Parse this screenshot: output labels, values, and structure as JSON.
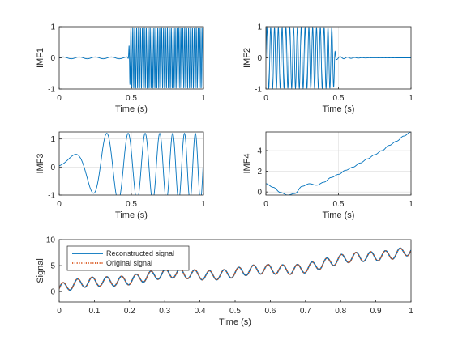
{
  "colors": {
    "series_blue": "#0072BD",
    "series_orange": "#D95319",
    "axes": "#262626",
    "grid": "#dcdcdc"
  },
  "chart_data": [
    {
      "id": "imf1",
      "type": "line",
      "xlabel": "Time (s)",
      "ylabel": "IMF1",
      "xlim": [
        0,
        1
      ],
      "ylim": [
        -1,
        1
      ],
      "xticks": [
        0,
        0.5,
        1
      ],
      "xtick_labels": [
        "0",
        "0.5",
        "1"
      ],
      "yticks": [
        -1,
        0,
        1
      ],
      "ytick_labels": [
        "-1",
        "0",
        "1"
      ],
      "grid": true,
      "signal": "quiet near 0 until ~0.48 s, then full-amplitude high-frequency oscillation between -1 and 1"
    },
    {
      "id": "imf2",
      "type": "line",
      "xlabel": "Time (s)",
      "ylabel": "IMF2",
      "xlim": [
        0,
        1
      ],
      "ylim": [
        -1,
        1
      ],
      "xticks": [
        0,
        0.5,
        1
      ],
      "xtick_labels": [
        "0",
        "0.5",
        "1"
      ],
      "yticks": [
        -1,
        0,
        1
      ],
      "ytick_labels": [
        "-1",
        "0",
        "1"
      ],
      "grid": true,
      "signal": "oscillation between -1 and 1 from 0 to ~0.48 s, small residual near 0 afterwards"
    },
    {
      "id": "imf3",
      "type": "line",
      "xlabel": "Time (s)",
      "ylabel": "IMF3",
      "xlim": [
        0,
        1
      ],
      "ylim": [
        -1,
        1.25
      ],
      "xticks": [
        0,
        0.5,
        1
      ],
      "xtick_labels": [
        "0",
        "0.5",
        "1"
      ],
      "yticks": [
        -1,
        0,
        1
      ],
      "ytick_labels": [
        "-1",
        "0",
        "1"
      ],
      "grid": true,
      "signal": "chirp with increasing frequency and amplitude, ~0.1 at t=0 rising to ~1.25 at t=1"
    },
    {
      "id": "imf4",
      "type": "line",
      "xlabel": "Time (s)",
      "ylabel": "IMF4",
      "xlim": [
        0,
        1
      ],
      "ylim": [
        -0.3,
        5.8
      ],
      "xticks": [
        0,
        0.5,
        1
      ],
      "xtick_labels": [
        "0",
        "0.5",
        "1"
      ],
      "yticks": [
        0,
        2,
        4
      ],
      "ytick_labels": [
        "0",
        "2",
        "4"
      ],
      "grid": true,
      "x": [
        0,
        0.05,
        0.1,
        0.15,
        0.2,
        0.25,
        0.3,
        0.35,
        0.4,
        0.45,
        0.5,
        0.55,
        0.6,
        0.65,
        0.7,
        0.75,
        0.8,
        0.85,
        0.9,
        0.95,
        1.0
      ],
      "y": [
        0.8,
        0.45,
        -0.05,
        -0.3,
        -0.15,
        0.55,
        0.8,
        0.65,
        0.95,
        1.4,
        1.7,
        2.1,
        2.4,
        2.8,
        3.2,
        3.6,
        4.0,
        4.5,
        4.9,
        5.4,
        5.8
      ]
    },
    {
      "id": "signal",
      "type": "line",
      "xlabel": "Time (s)",
      "ylabel": "Signal",
      "xlim": [
        0,
        1
      ],
      "ylim": [
        -2,
        10
      ],
      "xticks": [
        0,
        0.1,
        0.2,
        0.3,
        0.4,
        0.5,
        0.6,
        0.7,
        0.8,
        0.9,
        1
      ],
      "xtick_labels": [
        "0",
        "0.1",
        "0.2",
        "0.3",
        "0.4",
        "0.5",
        "0.6",
        "0.7",
        "0.8",
        "0.9",
        "1"
      ],
      "yticks": [
        0,
        5,
        10
      ],
      "ytick_labels": [
        "0",
        "5",
        "10"
      ],
      "grid": false,
      "legend_placement": "top-left",
      "series": [
        {
          "name": "Reconstructed signal",
          "style": "solid",
          "color": "#0072BD"
        },
        {
          "name": "Original signal",
          "style": "dotted",
          "color": "#D95319"
        }
      ],
      "signal": "sum of IMF1-IMF4 plus a rising trend, ranging from about 0.5 at t=0 to about 7.5 at t=1"
    }
  ]
}
